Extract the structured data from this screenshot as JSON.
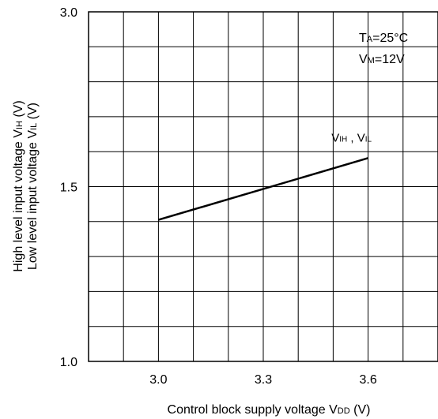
{
  "chart_data": {
    "type": "line",
    "title": "",
    "xlabel": {
      "text": "Control block supply voltage  V",
      "sub": "DD",
      "unit": " (V)"
    },
    "ylabel": {
      "line1": {
        "text": "High level input voltage  V",
        "sub": "IH",
        "unit": " (V)"
      },
      "line2": {
        "text": "Low level input voltage  V",
        "sub": "IL",
        "unit": " (V)"
      }
    },
    "xlim": [
      2.8,
      3.8
    ],
    "ylim": [
      1.0,
      3.0
    ],
    "y_axis_map": [
      [
        1.0,
        0.0
      ],
      [
        1.5,
        0.5
      ],
      [
        3.0,
        1.0
      ]
    ],
    "x_grid_values": [
      2.9,
      3.0,
      3.1,
      3.2,
      3.3,
      3.4,
      3.5,
      3.6,
      3.7
    ],
    "y_grid_fractions": [
      0.1,
      0.2,
      0.3,
      0.4,
      0.5,
      0.6,
      0.7,
      0.8,
      0.9
    ],
    "x_ticks": [
      {
        "value": 3.0,
        "label": "3.0"
      },
      {
        "value": 3.3,
        "label": "3.3"
      },
      {
        "value": 3.6,
        "label": "3.6"
      }
    ],
    "y_ticks": [
      {
        "value": 1.0,
        "label": "1.0"
      },
      {
        "value": 1.5,
        "label": "1.5"
      },
      {
        "value": 3.0,
        "label": "3.0"
      }
    ],
    "grid": true,
    "series": [
      {
        "name": {
          "p1": "V",
          "s1": "IH",
          "mid": " , V",
          "s2": "IL"
        },
        "x": [
          3.0,
          3.6
        ],
        "y": [
          1.405,
          1.745
        ]
      }
    ],
    "conditions": {
      "line1": {
        "pre": "T",
        "sub": "A",
        "post": "=25°C"
      },
      "line2": {
        "pre": "V",
        "sub": "M",
        "post": "=12V"
      }
    },
    "line_color": "#000000",
    "grid_color": "#000000"
  }
}
